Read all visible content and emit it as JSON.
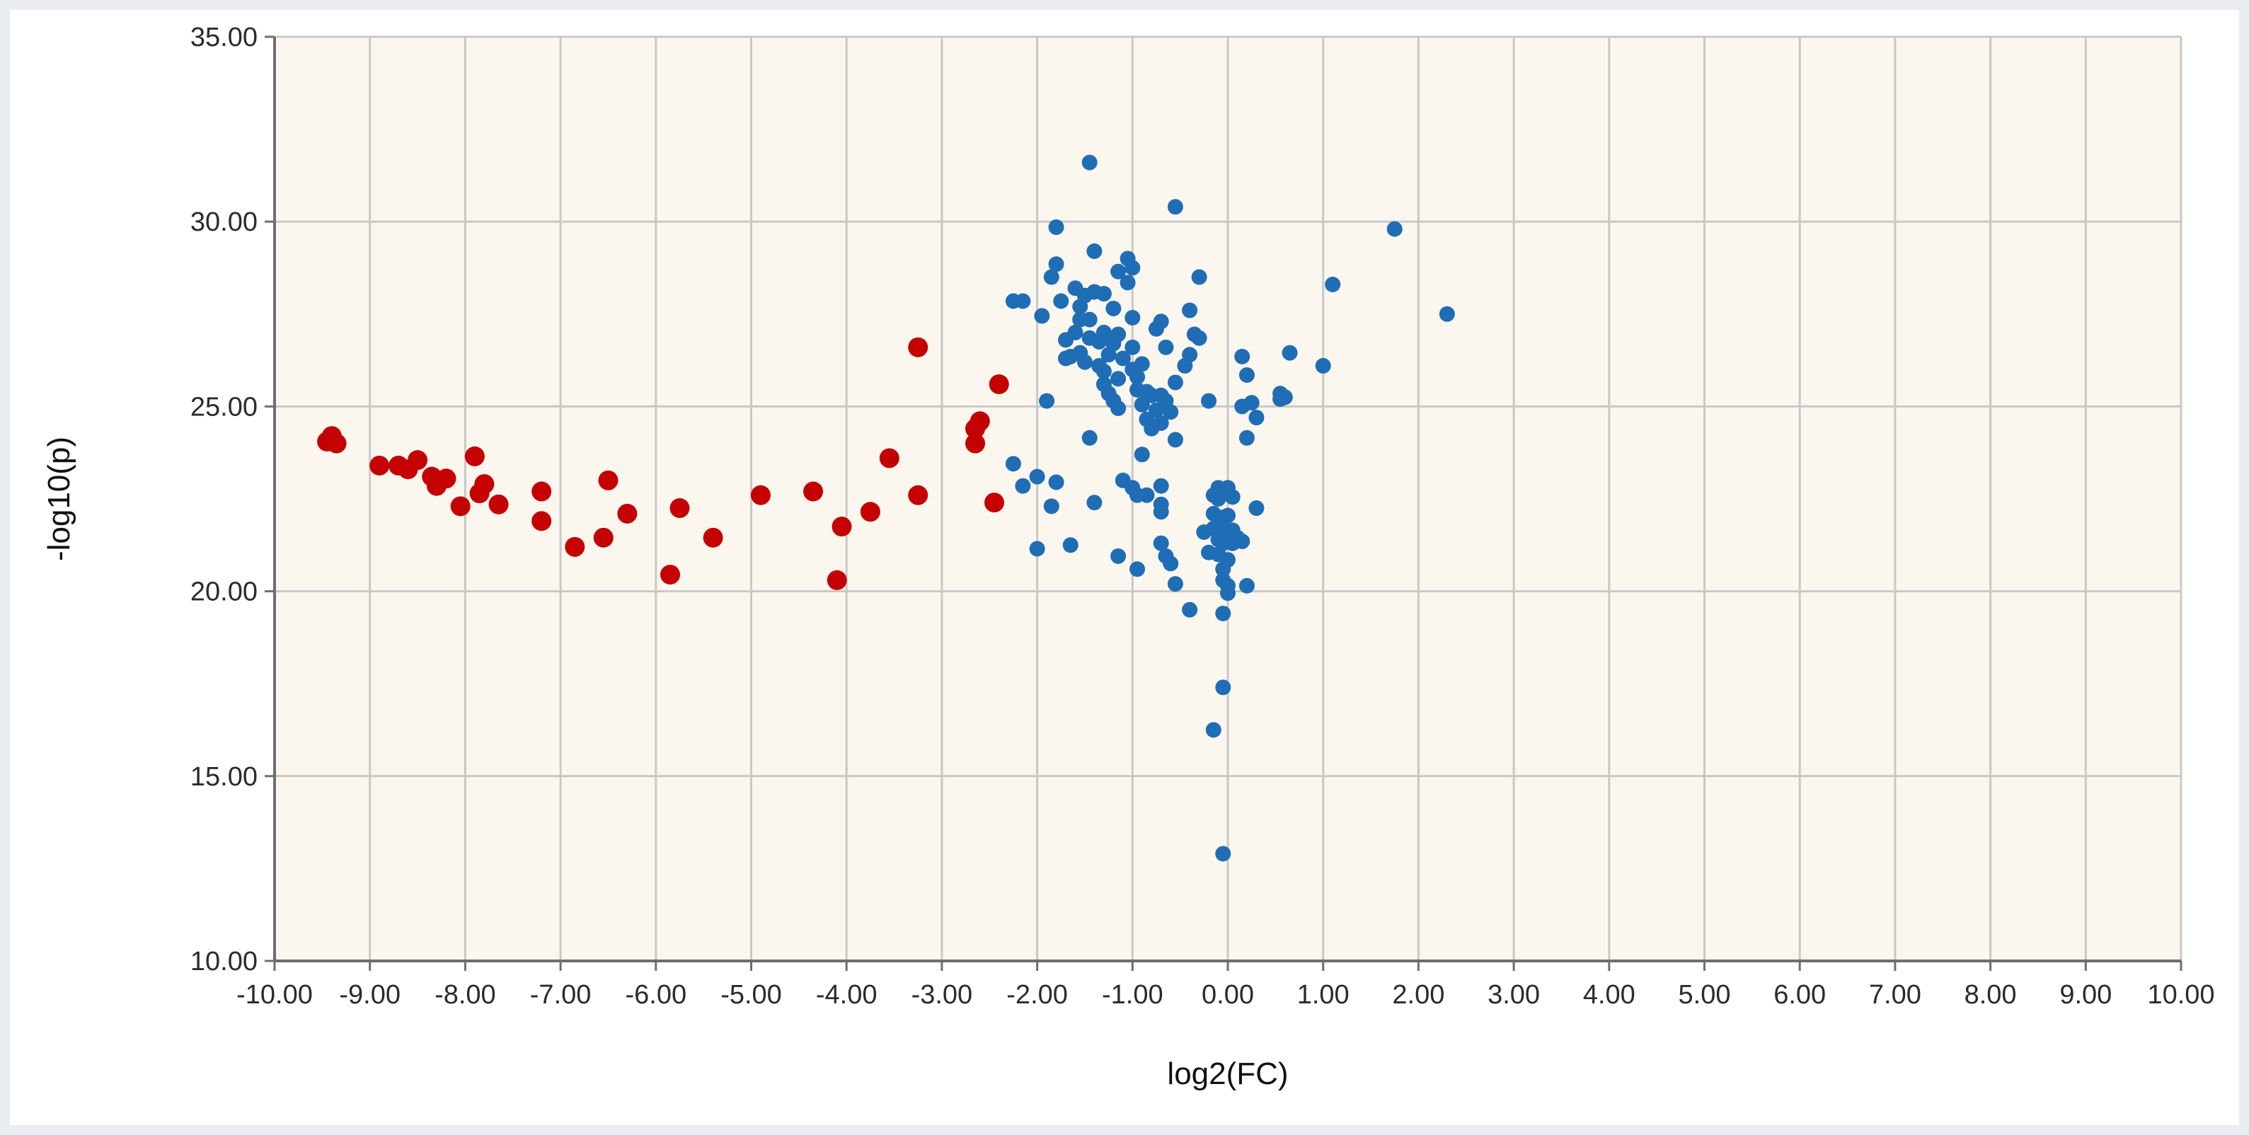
{
  "chart_data": {
    "type": "scatter",
    "xlabel": "log2(FC)",
    "ylabel": "-log10(p)",
    "xlim": [
      -10,
      10
    ],
    "ylim": [
      10,
      35
    ],
    "x_ticks": [
      -10,
      -9,
      -8,
      -7,
      -6,
      -5,
      -4,
      -3,
      -2,
      -1,
      0,
      1,
      2,
      3,
      4,
      5,
      6,
      7,
      8,
      9,
      10
    ],
    "y_ticks": [
      10,
      15,
      20,
      25,
      30,
      35
    ],
    "x_tick_labels": [
      "-10.00",
      "-9.00",
      "-8.00",
      "-7.00",
      "-6.00",
      "-5.00",
      "-4.00",
      "-3.00",
      "-2.00",
      "-1.00",
      "0.00",
      "1.00",
      "2.00",
      "3.00",
      "4.00",
      "5.00",
      "6.00",
      "7.00",
      "8.00",
      "9.00",
      "10.00"
    ],
    "y_tick_labels": [
      "10.00",
      "15.00",
      "20.00",
      "25.00",
      "30.00",
      "35.00"
    ],
    "grid": true,
    "plot_background": "#fbf7ee",
    "grid_color": "#c8c8c8",
    "series": [
      {
        "color": "#c40000",
        "points": [
          [
            -9.45,
            24.05
          ],
          [
            -9.4,
            24.2
          ],
          [
            -9.35,
            24.0
          ],
          [
            -8.9,
            23.4
          ],
          [
            -8.7,
            23.4
          ],
          [
            -8.6,
            23.3
          ],
          [
            -8.5,
            23.55
          ],
          [
            -8.35,
            23.1
          ],
          [
            -8.3,
            22.85
          ],
          [
            -8.2,
            23.05
          ],
          [
            -8.05,
            22.3
          ],
          [
            -7.9,
            23.65
          ],
          [
            -7.85,
            22.65
          ],
          [
            -7.8,
            22.9
          ],
          [
            -7.65,
            22.35
          ],
          [
            -7.2,
            22.7
          ],
          [
            -7.2,
            21.9
          ],
          [
            -6.85,
            21.2
          ],
          [
            -6.55,
            21.45
          ],
          [
            -6.5,
            23.0
          ],
          [
            -6.3,
            22.1
          ],
          [
            -5.85,
            20.45
          ],
          [
            -5.75,
            22.25
          ],
          [
            -5.4,
            21.45
          ],
          [
            -4.9,
            22.6
          ],
          [
            -4.35,
            22.7
          ],
          [
            -4.1,
            20.3
          ],
          [
            -4.05,
            21.75
          ],
          [
            -3.75,
            22.15
          ],
          [
            -3.55,
            23.6
          ],
          [
            -3.25,
            26.6
          ],
          [
            -3.25,
            22.6
          ],
          [
            -2.65,
            24.0
          ],
          [
            -2.65,
            24.4
          ],
          [
            -2.6,
            24.6
          ],
          [
            -2.45,
            22.4
          ],
          [
            -2.4,
            25.6
          ]
        ]
      },
      {
        "color": "#1f6db5",
        "points": [
          [
            -1.45,
            31.6
          ],
          [
            -0.55,
            30.4
          ],
          [
            -1.8,
            29.85
          ],
          [
            1.75,
            29.8
          ],
          [
            -1.4,
            29.2
          ],
          [
            -1.05,
            29.0
          ],
          [
            -1.8,
            28.85
          ],
          [
            -1.0,
            28.75
          ],
          [
            -1.15,
            28.65
          ],
          [
            -1.85,
            28.5
          ],
          [
            -0.3,
            28.5
          ],
          [
            -1.05,
            28.35
          ],
          [
            1.1,
            28.3
          ],
          [
            -1.6,
            28.2
          ],
          [
            -1.4,
            28.1
          ],
          [
            -1.3,
            28.05
          ],
          [
            -1.5,
            28.0
          ],
          [
            -2.25,
            27.85
          ],
          [
            -2.15,
            27.85
          ],
          [
            -1.75,
            27.85
          ],
          [
            -1.55,
            27.7
          ],
          [
            -1.2,
            27.65
          ],
          [
            -0.4,
            27.6
          ],
          [
            2.3,
            27.5
          ],
          [
            -1.95,
            27.45
          ],
          [
            -1.55,
            27.35
          ],
          [
            -1.45,
            27.35
          ],
          [
            -1.0,
            27.4
          ],
          [
            -0.7,
            27.3
          ],
          [
            -0.75,
            27.1
          ],
          [
            -1.6,
            27.0
          ],
          [
            -1.3,
            27.0
          ],
          [
            -1.15,
            26.95
          ],
          [
            -0.35,
            26.95
          ],
          [
            -1.45,
            26.85
          ],
          [
            -0.3,
            26.85
          ],
          [
            -1.7,
            26.8
          ],
          [
            -1.35,
            26.75
          ],
          [
            -1.2,
            26.7
          ],
          [
            -0.65,
            26.6
          ],
          [
            -1.0,
            26.6
          ],
          [
            -1.55,
            26.45
          ],
          [
            -1.25,
            26.4
          ],
          [
            -0.4,
            26.4
          ],
          [
            0.65,
            26.45
          ],
          [
            0.15,
            26.35
          ],
          [
            -1.65,
            26.35
          ],
          [
            -1.7,
            26.3
          ],
          [
            -1.1,
            26.3
          ],
          [
            -1.5,
            26.2
          ],
          [
            -1.35,
            26.1
          ],
          [
            -0.9,
            26.15
          ],
          [
            -0.45,
            26.1
          ],
          [
            1.0,
            26.1
          ],
          [
            -1.0,
            26.0
          ],
          [
            -1.3,
            25.95
          ],
          [
            0.2,
            25.85
          ],
          [
            -0.95,
            25.8
          ],
          [
            -1.15,
            25.75
          ],
          [
            -0.55,
            25.65
          ],
          [
            -1.3,
            25.6
          ],
          [
            -0.95,
            25.45
          ],
          [
            -0.85,
            25.4
          ],
          [
            -1.25,
            25.35
          ],
          [
            0.55,
            25.35
          ],
          [
            -0.8,
            25.3
          ],
          [
            -0.7,
            25.3
          ],
          [
            -1.9,
            25.15
          ],
          [
            -1.2,
            25.15
          ],
          [
            -0.65,
            25.15
          ],
          [
            -0.2,
            25.15
          ],
          [
            -0.9,
            25.05
          ],
          [
            0.25,
            25.1
          ],
          [
            0.55,
            25.2
          ],
          [
            0.6,
            25.25
          ],
          [
            0.15,
            25.0
          ],
          [
            -1.15,
            24.95
          ],
          [
            -0.75,
            24.9
          ],
          [
            -0.6,
            24.85
          ],
          [
            0.3,
            24.7
          ],
          [
            -0.85,
            24.65
          ],
          [
            -0.7,
            24.55
          ],
          [
            -0.8,
            24.4
          ],
          [
            -1.45,
            24.15
          ],
          [
            0.2,
            24.15
          ],
          [
            -0.55,
            24.1
          ],
          [
            -0.9,
            23.7
          ],
          [
            -2.25,
            23.45
          ],
          [
            -1.1,
            23.0
          ],
          [
            -2.0,
            23.1
          ],
          [
            -1.8,
            22.95
          ],
          [
            -1.0,
            22.8
          ],
          [
            -0.7,
            22.85
          ],
          [
            -2.15,
            22.85
          ],
          [
            -0.85,
            22.6
          ],
          [
            -0.95,
            22.6
          ],
          [
            -0.1,
            22.8
          ],
          [
            -0.05,
            22.75
          ],
          [
            0.0,
            22.8
          ],
          [
            -0.15,
            22.6
          ],
          [
            -0.1,
            22.5
          ],
          [
            0.05,
            22.55
          ],
          [
            -1.4,
            22.4
          ],
          [
            -1.85,
            22.3
          ],
          [
            -0.7,
            22.35
          ],
          [
            0.3,
            22.25
          ],
          [
            -0.7,
            22.15
          ],
          [
            -0.15,
            22.1
          ],
          [
            -0.05,
            22.0
          ],
          [
            0.0,
            22.05
          ],
          [
            -0.25,
            21.6
          ],
          [
            -0.15,
            21.7
          ],
          [
            -0.05,
            21.75
          ],
          [
            0.05,
            21.65
          ],
          [
            -0.1,
            21.4
          ],
          [
            0.0,
            21.5
          ],
          [
            0.1,
            21.45
          ],
          [
            0.15,
            21.35
          ],
          [
            -0.05,
            21.3
          ],
          [
            0.05,
            21.3
          ],
          [
            -0.7,
            21.3
          ],
          [
            -1.65,
            21.25
          ],
          [
            -2.0,
            21.15
          ],
          [
            -0.2,
            21.05
          ],
          [
            -0.1,
            21.0
          ],
          [
            0.0,
            20.85
          ],
          [
            -0.65,
            20.95
          ],
          [
            -1.15,
            20.95
          ],
          [
            -0.6,
            20.75
          ],
          [
            -0.95,
            20.6
          ],
          [
            -0.05,
            20.6
          ],
          [
            -0.05,
            20.3
          ],
          [
            -0.55,
            20.2
          ],
          [
            0.0,
            20.15
          ],
          [
            0.2,
            20.15
          ],
          [
            0.0,
            19.95
          ],
          [
            -0.4,
            19.5
          ],
          [
            -0.05,
            19.4
          ],
          [
            -0.05,
            17.4
          ],
          [
            -0.15,
            16.25
          ],
          [
            -0.05,
            12.9
          ]
        ]
      }
    ]
  }
}
